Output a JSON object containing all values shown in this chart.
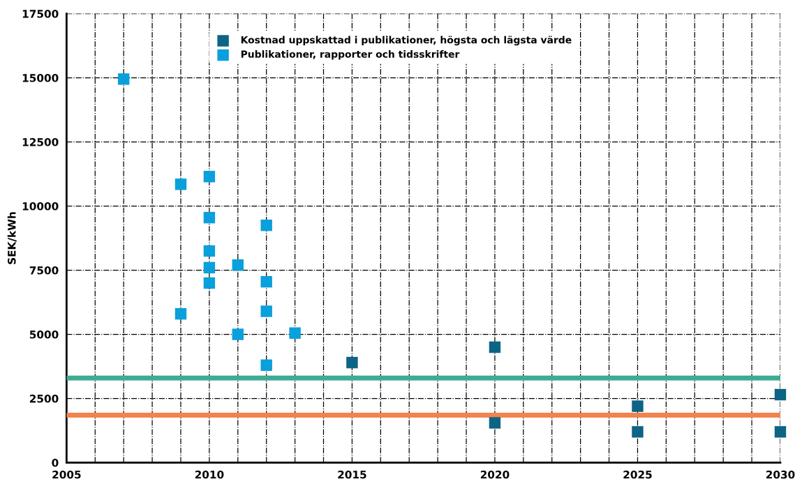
{
  "chart_data": {
    "type": "scatter",
    "ylabel": "SEK/kWh",
    "xlim": [
      2005,
      2030
    ],
    "ylim": [
      0,
      17500
    ],
    "xticks": [
      2005,
      {
        "value": 2006,
        "label": null
      },
      {
        "value": 2007,
        "label": null
      },
      {
        "value": 2008,
        "label": null
      },
      {
        "value": 2009,
        "label": null
      },
      2010,
      {
        "value": 2011,
        "label": null
      },
      {
        "value": 2012,
        "label": null
      },
      {
        "value": 2013,
        "label": null
      },
      {
        "value": 2014,
        "label": null
      },
      2015,
      {
        "value": 2016,
        "label": null
      },
      {
        "value": 2017,
        "label": null
      },
      {
        "value": 2018,
        "label": null
      },
      {
        "value": 2019,
        "label": null
      },
      2020,
      {
        "value": 2021,
        "label": null
      },
      {
        "value": 2022,
        "label": null
      },
      {
        "value": 2023,
        "label": null
      },
      {
        "value": 2024,
        "label": null
      },
      2025,
      {
        "value": 2026,
        "label": null
      },
      {
        "value": 2027,
        "label": null
      },
      {
        "value": 2028,
        "label": null
      },
      {
        "value": 2029,
        "label": null
      },
      2030
    ],
    "yticks": [
      0,
      2500,
      5000,
      7500,
      10000,
      12500,
      15000,
      17500
    ],
    "grid": true,
    "legend": "top right",
    "marker": "square",
    "series": [
      {
        "name": "Kostnad uppskattad i publikationer, högsta och lägsta värde",
        "color": "#0d6485",
        "x": [
          2015,
          2020,
          2020,
          2025,
          2025,
          2030,
          2030
        ],
        "values": [
          3900,
          4500,
          1550,
          2200,
          1200,
          2650,
          1200
        ]
      },
      {
        "name": "Publikationer, rapporter och tidsskrifter",
        "color": "#0aa0dc",
        "x": [
          2007,
          2009,
          2009,
          2010,
          2010,
          2010,
          2010,
          2010,
          2011,
          2011,
          2012,
          2012,
          2012,
          2012,
          2013
        ],
        "values": [
          14950,
          10850,
          5800,
          11150,
          9550,
          8250,
          7600,
          7000,
          7700,
          5000,
          9250,
          7050,
          5900,
          3800,
          5050
        ]
      }
    ],
    "ref_lines": [
      {
        "axis": "y",
        "value": 3300,
        "color": "#3fab93"
      },
      {
        "axis": "y",
        "value": 1850,
        "color": "#f3834c"
      }
    ]
  }
}
